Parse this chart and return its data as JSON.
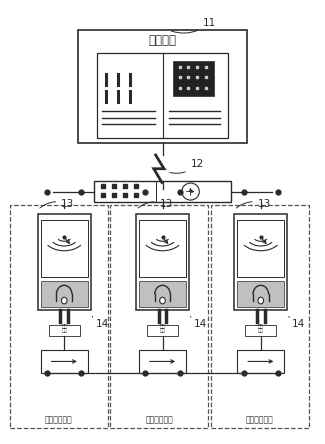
{
  "bg_color": "#ffffff",
  "lc": "#2a2a2a",
  "dc": "#555555",
  "gray_fill": "#555555",
  "dark_fill": "#222222",
  "label_11": "11",
  "label_12": "12",
  "label_13": "13",
  "label_14": "14",
  "title_station": "采集主站",
  "label_meter": "电能",
  "label_user": "用户用电系统",
  "fig_width": 3.25,
  "fig_height": 4.44,
  "dpi": 100,
  "xlim": [
    0,
    10
  ],
  "ylim": [
    0,
    14
  ]
}
